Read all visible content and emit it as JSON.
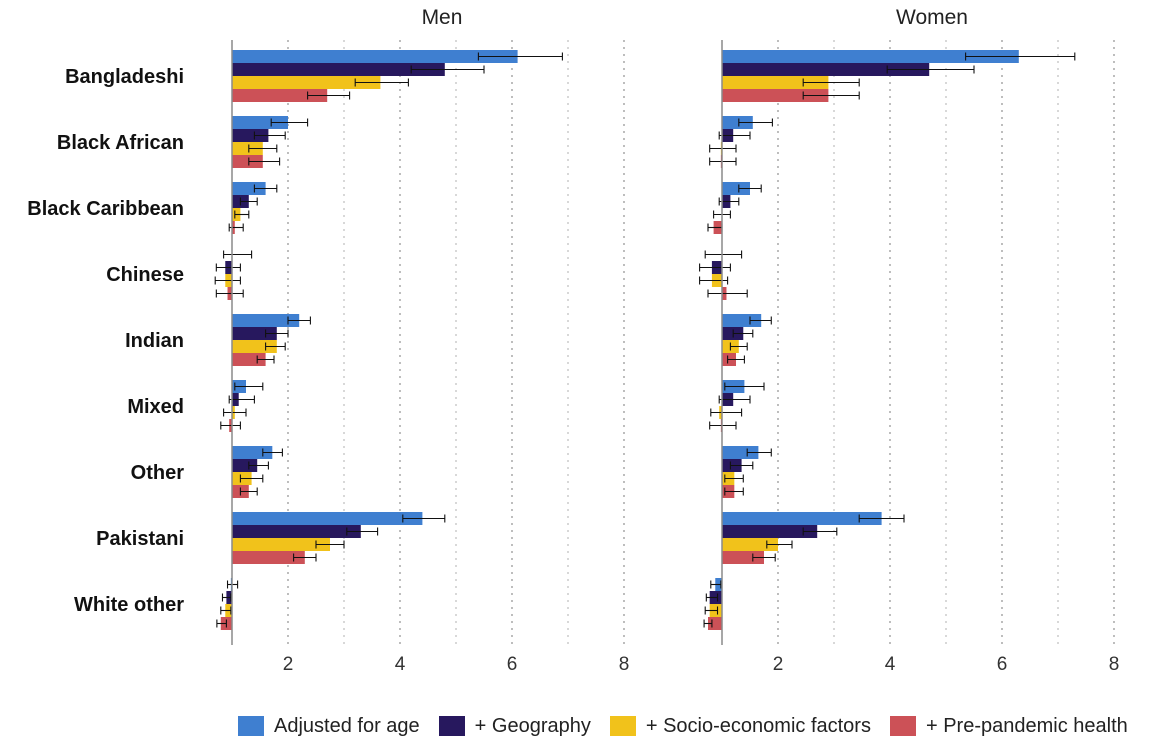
{
  "chart_data": {
    "type": "bar",
    "orientation": "horizontal",
    "reference_line": 1,
    "xlim": [
      1,
      8
    ],
    "xticks": [
      2,
      4,
      6,
      8
    ],
    "grid": "vertical dotted",
    "legend_position": "bottom",
    "categories": [
      "Bangladeshi",
      "Black African",
      "Black Caribbean",
      "Chinese",
      "Indian",
      "Mixed",
      "Other",
      "Pakistani",
      "White other"
    ],
    "series": [
      {
        "name": "Adjusted for age",
        "color": "#3f7fd0"
      },
      {
        "name": "+ Geography",
        "color": "#27185e"
      },
      {
        "name": "+ Socio-economic factors",
        "color": "#f1c21b"
      },
      {
        "name": "+ Pre-pandemic health",
        "color": "#cc5157"
      }
    ],
    "panels": [
      {
        "title": "Men",
        "data": [
          [
            [
              6.1,
              5.4,
              6.9
            ],
            [
              4.8,
              4.2,
              5.5
            ],
            [
              3.65,
              3.2,
              4.15
            ],
            [
              2.7,
              2.35,
              3.1
            ]
          ],
          [
            [
              2.0,
              1.7,
              2.35
            ],
            [
              1.65,
              1.4,
              1.95
            ],
            [
              1.55,
              1.3,
              1.8
            ],
            [
              1.55,
              1.3,
              1.85
            ]
          ],
          [
            [
              1.6,
              1.4,
              1.8
            ],
            [
              1.3,
              1.15,
              1.45
            ],
            [
              1.15,
              1.05,
              1.3
            ],
            [
              1.05,
              0.95,
              1.2
            ]
          ],
          [
            [
              1.0,
              0.85,
              1.35
            ],
            [
              0.88,
              0.72,
              1.15
            ],
            [
              0.88,
              0.7,
              1.15
            ],
            [
              0.92,
              0.72,
              1.2
            ]
          ],
          [
            [
              2.2,
              2.0,
              2.4
            ],
            [
              1.8,
              1.6,
              2.0
            ],
            [
              1.8,
              1.6,
              1.95
            ],
            [
              1.6,
              1.45,
              1.75
            ]
          ],
          [
            [
              1.25,
              1.05,
              1.55
            ],
            [
              1.12,
              0.95,
              1.4
            ],
            [
              1.05,
              0.85,
              1.25
            ],
            [
              0.95,
              0.8,
              1.15
            ]
          ],
          [
            [
              1.72,
              1.55,
              1.9
            ],
            [
              1.45,
              1.3,
              1.65
            ],
            [
              1.35,
              1.15,
              1.55
            ],
            [
              1.3,
              1.15,
              1.45
            ]
          ],
          [
            [
              4.4,
              4.05,
              4.8
            ],
            [
              3.3,
              3.05,
              3.6
            ],
            [
              2.75,
              2.5,
              3.0
            ],
            [
              2.3,
              2.1,
              2.5
            ]
          ],
          [
            [
              0.98,
              0.92,
              1.1
            ],
            [
              0.9,
              0.83,
              0.98
            ],
            [
              0.88,
              0.8,
              0.98
            ],
            [
              0.8,
              0.73,
              0.9
            ]
          ]
        ]
      },
      {
        "title": "Women",
        "data": [
          [
            [
              6.3,
              5.35,
              7.3
            ],
            [
              4.7,
              3.95,
              5.5
            ],
            [
              2.9,
              2.45,
              3.45
            ],
            [
              2.9,
              2.45,
              3.45
            ]
          ],
          [
            [
              1.55,
              1.3,
              1.9
            ],
            [
              1.2,
              0.95,
              1.5
            ],
            [
              0.98,
              0.78,
              1.25
            ],
            [
              0.98,
              0.78,
              1.25
            ]
          ],
          [
            [
              1.5,
              1.3,
              1.7
            ],
            [
              1.15,
              0.95,
              1.3
            ],
            [
              1.0,
              0.85,
              1.15
            ],
            [
              0.85,
              0.75,
              1.0
            ]
          ],
          [
            [
              1.0,
              0.7,
              1.35
            ],
            [
              0.82,
              0.6,
              1.15
            ],
            [
              0.82,
              0.6,
              1.1
            ],
            [
              1.08,
              0.75,
              1.45
            ]
          ],
          [
            [
              1.7,
              1.5,
              1.88
            ],
            [
              1.38,
              1.2,
              1.55
            ],
            [
              1.3,
              1.15,
              1.45
            ],
            [
              1.25,
              1.1,
              1.4
            ]
          ],
          [
            [
              1.4,
              1.05,
              1.75
            ],
            [
              1.2,
              0.95,
              1.5
            ],
            [
              0.95,
              0.8,
              1.35
            ],
            [
              0.98,
              0.78,
              1.25
            ]
          ],
          [
            [
              1.65,
              1.45,
              1.88
            ],
            [
              1.35,
              1.15,
              1.55
            ],
            [
              1.22,
              1.05,
              1.38
            ],
            [
              1.22,
              1.05,
              1.38
            ]
          ],
          [
            [
              3.85,
              3.45,
              4.25
            ],
            [
              2.7,
              2.45,
              3.05
            ],
            [
              2.0,
              1.8,
              2.25
            ],
            [
              1.75,
              1.55,
              1.95
            ]
          ],
          [
            [
              0.88,
              0.8,
              0.98
            ],
            [
              0.78,
              0.72,
              0.92
            ],
            [
              0.78,
              0.7,
              0.92
            ],
            [
              0.75,
              0.68,
              0.82
            ]
          ]
        ]
      }
    ]
  }
}
